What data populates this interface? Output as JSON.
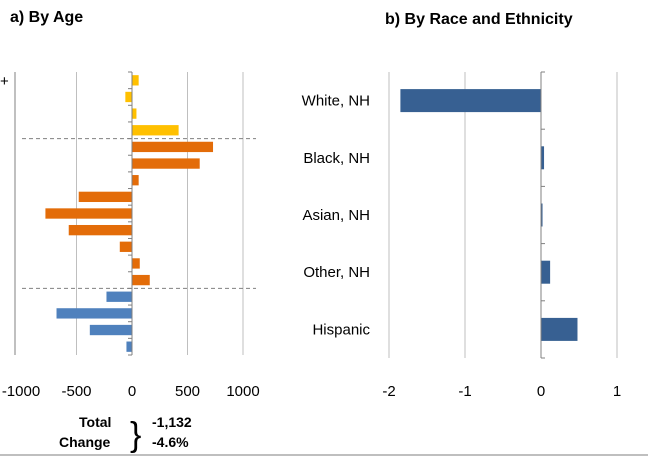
{
  "chart_data": [
    {
      "type": "bar",
      "orientation": "horizontal",
      "title": "a) By Age",
      "xlim": [
        -1000,
        1000
      ],
      "xticks": [
        "-1000",
        "-500",
        "0",
        "500",
        "1000"
      ],
      "grid": "vertical",
      "top_label_fragment": "+",
      "groups": [
        {
          "color": "#FFC000",
          "values": [
            60,
            -60,
            40,
            420
          ]
        },
        {
          "color": "#E36C09",
          "values": [
            730,
            610,
            60,
            -480,
            -780,
            -570,
            -110,
            70,
            160
          ]
        },
        {
          "color": "#4F81BD",
          "values": [
            -230,
            -680,
            -380,
            -50
          ]
        }
      ],
      "dashed_separators_after_bar": [
        4,
        13
      ],
      "total_change": {
        "label_line1": "Total",
        "label_line2": "Change",
        "brace": "}",
        "value": "-1,132",
        "percent": "-4.6%"
      }
    },
    {
      "type": "bar",
      "orientation": "horizontal",
      "title": "b) By Race and Ethnicity",
      "categories": [
        "White, NH",
        "Black, NH",
        "Asian, NH",
        "Other, NH",
        "Hispanic"
      ],
      "values": [
        -1.85,
        0.04,
        0.02,
        0.12,
        0.48
      ],
      "color": "#376092",
      "xlim": [
        -2,
        1
      ],
      "xticks": [
        "-2",
        "-1",
        "0",
        "1"
      ],
      "grid": "vertical"
    }
  ]
}
